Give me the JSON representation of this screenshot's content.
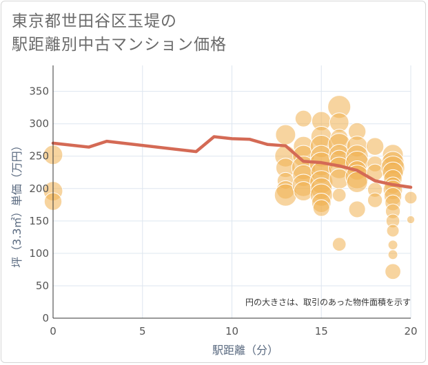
{
  "title": {
    "line1": "東京都世田谷区玉堤の",
    "line2": "駅距離別中古マンション価格"
  },
  "chart_data": {
    "type": "scatter",
    "xlabel": "駅距離（分）",
    "ylabel": "坪（3.3㎡）単価（万円）",
    "xlim": [
      0,
      20
    ],
    "ylim": [
      0,
      390
    ],
    "x_ticks": [
      "0",
      "5",
      "10",
      "15",
      "20"
    ],
    "y_ticks": [
      "0",
      "50",
      "100",
      "150",
      "200",
      "250",
      "300",
      "350"
    ],
    "grid": true,
    "note": "円の大きさは、取引のあった物件面積を示す",
    "colors": {
      "bubble": "#f0b050",
      "line": "#d46a55",
      "grid": "#dde6ef"
    },
    "bubbles": [
      {
        "x": 0,
        "y": 252,
        "size": 60
      },
      {
        "x": 0,
        "y": 196,
        "size": 60
      },
      {
        "x": 0,
        "y": 180,
        "size": 50
      },
      {
        "x": 13,
        "y": 283,
        "size": 65
      },
      {
        "x": 13,
        "y": 250,
        "size": 75
      },
      {
        "x": 13,
        "y": 232,
        "size": 60
      },
      {
        "x": 13,
        "y": 212,
        "size": 45
      },
      {
        "x": 13,
        "y": 198,
        "size": 55
      },
      {
        "x": 13,
        "y": 190,
        "size": 80
      },
      {
        "x": 14,
        "y": 308,
        "size": 45
      },
      {
        "x": 14,
        "y": 265,
        "size": 65
      },
      {
        "x": 14,
        "y": 250,
        "size": 75
      },
      {
        "x": 14,
        "y": 232,
        "size": 90
      },
      {
        "x": 14,
        "y": 220,
        "size": 75
      },
      {
        "x": 14,
        "y": 205,
        "size": 80
      },
      {
        "x": 14,
        "y": 196,
        "size": 60
      },
      {
        "x": 15,
        "y": 304,
        "size": 60
      },
      {
        "x": 15,
        "y": 280,
        "size": 70
      },
      {
        "x": 15,
        "y": 265,
        "size": 80
      },
      {
        "x": 15,
        "y": 250,
        "size": 75
      },
      {
        "x": 15,
        "y": 238,
        "size": 90
      },
      {
        "x": 15,
        "y": 225,
        "size": 70
      },
      {
        "x": 15,
        "y": 210,
        "size": 85
      },
      {
        "x": 15,
        "y": 200,
        "size": 75
      },
      {
        "x": 15,
        "y": 190,
        "size": 80
      },
      {
        "x": 15,
        "y": 178,
        "size": 60
      },
      {
        "x": 15,
        "y": 170,
        "size": 45
      },
      {
        "x": 16,
        "y": 326,
        "size": 85
      },
      {
        "x": 16,
        "y": 302,
        "size": 60
      },
      {
        "x": 16,
        "y": 278,
        "size": 50
      },
      {
        "x": 16,
        "y": 268,
        "size": 80
      },
      {
        "x": 16,
        "y": 252,
        "size": 70
      },
      {
        "x": 16,
        "y": 245,
        "size": 55
      },
      {
        "x": 16,
        "y": 232,
        "size": 75
      },
      {
        "x": 16,
        "y": 215,
        "size": 65
      },
      {
        "x": 16,
        "y": 190,
        "size": 30
      },
      {
        "x": 16,
        "y": 114,
        "size": 30
      },
      {
        "x": 17,
        "y": 288,
        "size": 50
      },
      {
        "x": 17,
        "y": 265,
        "size": 70
      },
      {
        "x": 17,
        "y": 250,
        "size": 80
      },
      {
        "x": 17,
        "y": 240,
        "size": 85
      },
      {
        "x": 17,
        "y": 228,
        "size": 60
      },
      {
        "x": 17,
        "y": 218,
        "size": 90
      },
      {
        "x": 17,
        "y": 210,
        "size": 70
      },
      {
        "x": 17,
        "y": 168,
        "size": 45
      },
      {
        "x": 18,
        "y": 265,
        "size": 50
      },
      {
        "x": 18,
        "y": 238,
        "size": 40
      },
      {
        "x": 18,
        "y": 225,
        "size": 45
      },
      {
        "x": 18,
        "y": 198,
        "size": 35
      },
      {
        "x": 18,
        "y": 182,
        "size": 35
      },
      {
        "x": 19,
        "y": 252,
        "size": 70
      },
      {
        "x": 19,
        "y": 240,
        "size": 80
      },
      {
        "x": 19,
        "y": 232,
        "size": 90
      },
      {
        "x": 19,
        "y": 225,
        "size": 70
      },
      {
        "x": 19,
        "y": 215,
        "size": 55
      },
      {
        "x": 19,
        "y": 205,
        "size": 45
      },
      {
        "x": 19,
        "y": 198,
        "size": 60
      },
      {
        "x": 19,
        "y": 188,
        "size": 50
      },
      {
        "x": 19,
        "y": 178,
        "size": 40
      },
      {
        "x": 19,
        "y": 165,
        "size": 35
      },
      {
        "x": 19,
        "y": 150,
        "size": 30
      },
      {
        "x": 19,
        "y": 135,
        "size": 25
      },
      {
        "x": 19,
        "y": 113,
        "size": 15
      },
      {
        "x": 19,
        "y": 98,
        "size": 15
      },
      {
        "x": 19,
        "y": 72,
        "size": 40
      },
      {
        "x": 20,
        "y": 186,
        "size": 25
      },
      {
        "x": 20,
        "y": 152,
        "size": 10
      }
    ],
    "series": [
      {
        "x": [
          0,
          2,
          3,
          8,
          9,
          10,
          11,
          12,
          13,
          14,
          15,
          16,
          17,
          18,
          19,
          20
        ],
        "y": [
          270,
          264,
          273,
          257,
          280,
          277,
          276,
          268,
          266,
          242,
          240,
          235,
          228,
          212,
          206,
          202
        ]
      }
    ]
  }
}
